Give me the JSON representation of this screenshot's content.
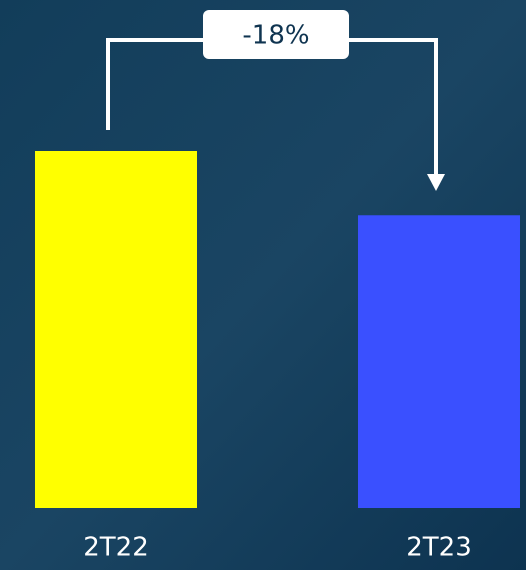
{
  "chart_data": {
    "type": "bar",
    "categories": [
      "2T22",
      "2T23"
    ],
    "values": [
      100,
      82
    ],
    "colors": [
      "#ffff00",
      "#3a50ff"
    ],
    "annotation": "-18%"
  }
}
